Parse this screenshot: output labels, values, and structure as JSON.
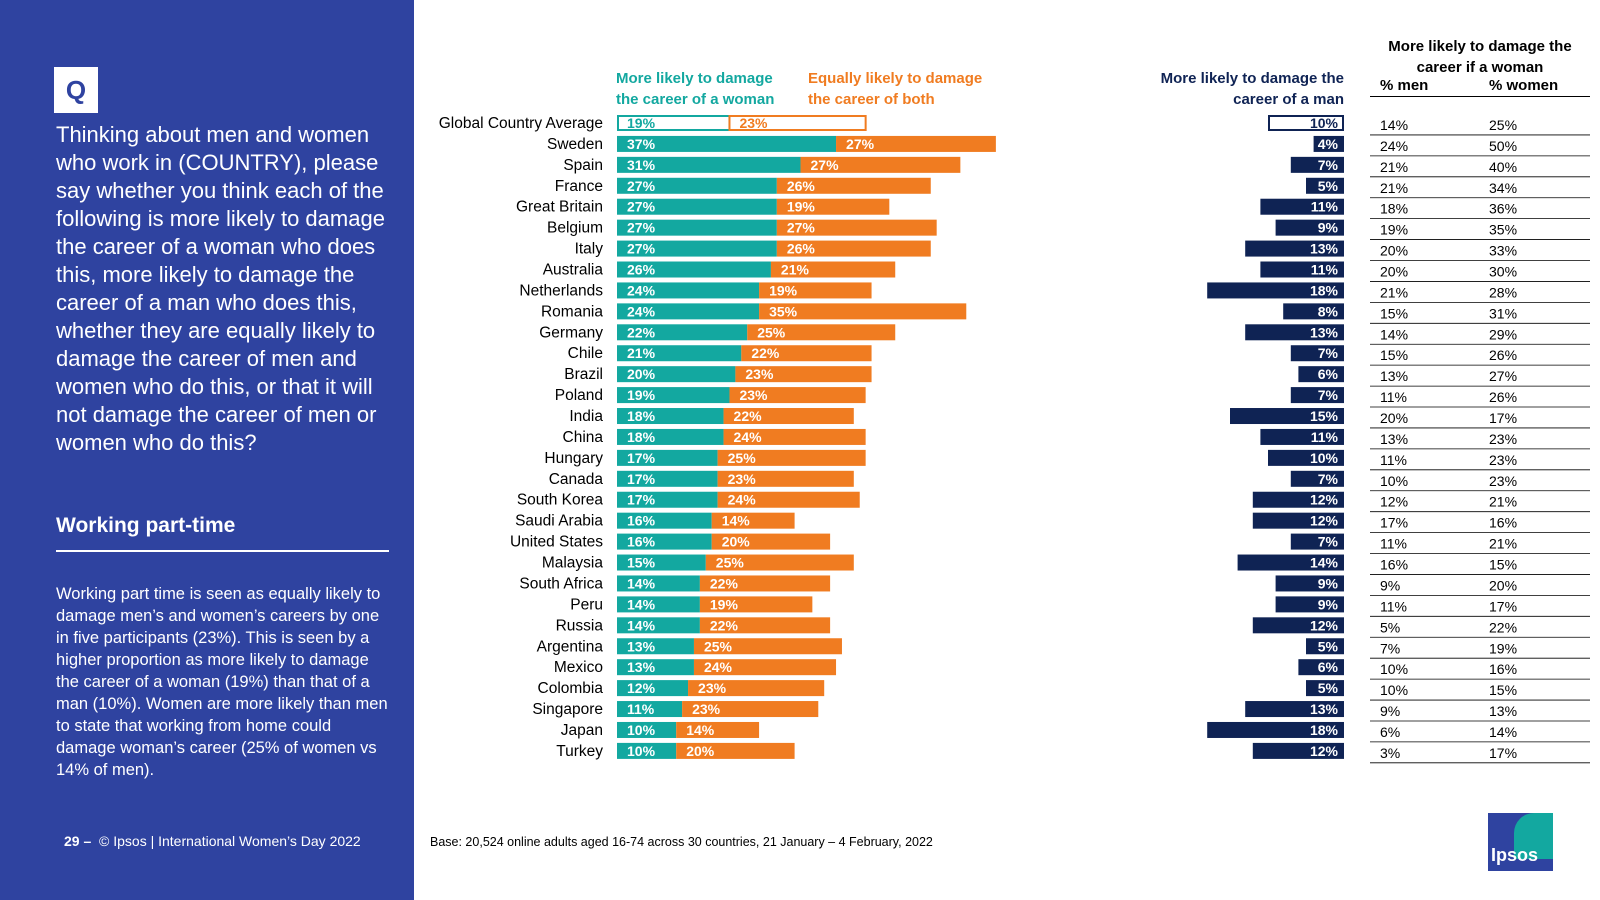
{
  "sidebar": {
    "q_label": "Q",
    "question": "Thinking about men and women who work in (COUNTRY), please say whether you think each of the following is more likely to damage the career of a woman who does this, more likely to damage the career of a man who does this, whether they are equally likely to damage the career of men and women who do this, or that it will not damage the career of men or women who do this?",
    "section_title": "Working part-time",
    "summary": "Working part time is seen as equally likely to damage men’s and women’s careers by one in five participants (23%). This is seen by a higher proportion as more likely to damage the career of a woman (19%) than that of a man (10%). Women are more likely than men to state that working from home could damage woman’s career (25% of women vs 14% of men).",
    "page_number": "29 –",
    "footer": "© Ipsos | International Women’s Day 2022"
  },
  "base_note": "Base: 20,524 online adults aged 16-74 across 30 countries, 21 January – 4 February, 2022",
  "logo_text": "Ipsos",
  "colors": {
    "sidebar": "#2f43a0",
    "woman": "#13a8a0",
    "both": "#f07c21",
    "man": "#0f2354",
    "white": "#ffffff"
  },
  "chart_data": {
    "type": "bar",
    "orientation": "horizontal",
    "categories": [
      "Global Country Average",
      "Sweden",
      "Spain",
      "France",
      "Great Britain",
      "Belgium",
      "Italy",
      "Australia",
      "Netherlands",
      "Romania",
      "Germany",
      "Chile",
      "Brazil",
      "Poland",
      "India",
      "China",
      "Hungary",
      "Canada",
      "South Korea",
      "Saudi Arabia",
      "United States",
      "Malaysia",
      "South Africa",
      "Peru",
      "Russia",
      "Argentina",
      "Mexico",
      "Colombia",
      "Singapore",
      "Japan",
      "Turkey"
    ],
    "series": [
      {
        "name": "More likely to damage the career of a woman",
        "values": [
          19,
          37,
          31,
          27,
          27,
          27,
          27,
          26,
          24,
          24,
          22,
          21,
          20,
          19,
          18,
          18,
          17,
          17,
          17,
          16,
          16,
          15,
          14,
          14,
          14,
          13,
          13,
          12,
          11,
          10,
          10
        ]
      },
      {
        "name": "Equally likely to damage the career of both",
        "values": [
          23,
          27,
          27,
          26,
          19,
          27,
          26,
          21,
          19,
          35,
          25,
          22,
          23,
          23,
          22,
          24,
          25,
          23,
          24,
          14,
          20,
          25,
          22,
          19,
          22,
          25,
          24,
          23,
          23,
          14,
          20
        ]
      },
      {
        "name": "More likely to damage the career of a man",
        "values": [
          10,
          4,
          7,
          5,
          11,
          9,
          13,
          11,
          18,
          8,
          13,
          7,
          6,
          7,
          15,
          11,
          10,
          7,
          12,
          12,
          7,
          14,
          9,
          9,
          12,
          5,
          6,
          5,
          13,
          18,
          12
        ]
      }
    ],
    "stacked_series": [
      0,
      1
    ],
    "highlight_category": "Global Country Average",
    "table": {
      "title": "More likely to damage the career if a woman",
      "columns": [
        "% men",
        "% women"
      ],
      "rows": [
        [
          "14%",
          "25%"
        ],
        [
          "24%",
          "50%"
        ],
        [
          "21%",
          "40%"
        ],
        [
          "21%",
          "34%"
        ],
        [
          "18%",
          "36%"
        ],
        [
          "19%",
          "35%"
        ],
        [
          "20%",
          "33%"
        ],
        [
          "20%",
          "30%"
        ],
        [
          "21%",
          "28%"
        ],
        [
          "15%",
          "31%"
        ],
        [
          "14%",
          "29%"
        ],
        [
          "15%",
          "26%"
        ],
        [
          "13%",
          "27%"
        ],
        [
          "11%",
          "26%"
        ],
        [
          "20%",
          "17%"
        ],
        [
          "13%",
          "23%"
        ],
        [
          "11%",
          "23%"
        ],
        [
          "10%",
          "23%"
        ],
        [
          "12%",
          "21%"
        ],
        [
          "17%",
          "16%"
        ],
        [
          "11%",
          "21%"
        ],
        [
          "16%",
          "15%"
        ],
        [
          "9%",
          "20%"
        ],
        [
          "11%",
          "17%"
        ],
        [
          "5%",
          "22%"
        ],
        [
          "7%",
          "19%"
        ],
        [
          "10%",
          "16%"
        ],
        [
          "10%",
          "15%"
        ],
        [
          "9%",
          "13%"
        ],
        [
          "6%",
          "14%"
        ],
        [
          "3%",
          "17%"
        ]
      ]
    },
    "legend_position": "top",
    "grid": false
  }
}
